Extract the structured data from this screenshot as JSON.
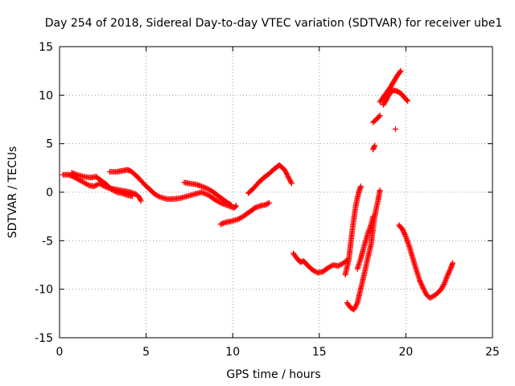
{
  "chart_data": {
    "type": "scatter",
    "title": "Day 254 of 2018, Sidereal Day-to-day VTEC variation (SDTVAR) for receiver ube1",
    "xlabel": "GPS time / hours",
    "ylabel": "SDTVAR / TECUs",
    "xlim": [
      0,
      25
    ],
    "ylim": [
      -15,
      15
    ],
    "xticks": [
      0,
      5,
      10,
      15,
      20,
      25
    ],
    "yticks": [
      -15,
      -10,
      -5,
      0,
      5,
      10,
      15
    ],
    "x_tick_labels": [
      "0",
      "5",
      "10",
      "15",
      "20",
      "25"
    ],
    "y_tick_labels": [
      "-15",
      "-10",
      "-5",
      "0",
      "5",
      "10",
      "15"
    ],
    "grid": true,
    "marker": "+",
    "color": "#ff0000",
    "segments": [
      [
        [
          0.2,
          1.8
        ],
        [
          0.5,
          1.8
        ],
        [
          0.8,
          1.6
        ],
        [
          1.1,
          1.3
        ],
        [
          1.4,
          1.0
        ],
        [
          1.7,
          0.7
        ],
        [
          2.0,
          0.6
        ],
        [
          2.3,
          0.9
        ],
        [
          2.6,
          0.6
        ],
        [
          2.9,
          0.4
        ],
        [
          3.2,
          0.3
        ],
        [
          3.5,
          0.2
        ],
        [
          3.8,
          0.1
        ],
        [
          4.1,
          0.0
        ],
        [
          4.4,
          -0.2
        ],
        [
          4.6,
          -0.5
        ],
        [
          4.7,
          -0.9
        ]
      ],
      [
        [
          0.7,
          2.0
        ],
        [
          1.0,
          1.8
        ],
        [
          1.4,
          1.6
        ],
        [
          1.8,
          1.5
        ],
        [
          2.1,
          1.6
        ],
        [
          2.4,
          1.2
        ],
        [
          2.7,
          0.8
        ],
        [
          3.0,
          0.3
        ],
        [
          3.3,
          0.0
        ],
        [
          3.6,
          -0.1
        ],
        [
          3.9,
          -0.3
        ],
        [
          4.2,
          -0.4
        ]
      ],
      [
        [
          2.9,
          2.1
        ],
        [
          3.3,
          2.1
        ],
        [
          3.6,
          2.2
        ],
        [
          3.9,
          2.3
        ],
        [
          4.1,
          2.2
        ],
        [
          4.3,
          1.9
        ],
        [
          4.6,
          1.4
        ],
        [
          4.9,
          0.8
        ],
        [
          5.2,
          0.3
        ],
        [
          5.5,
          -0.2
        ],
        [
          5.8,
          -0.5
        ],
        [
          6.2,
          -0.7
        ],
        [
          6.6,
          -0.7
        ],
        [
          7.0,
          -0.6
        ],
        [
          7.4,
          -0.4
        ],
        [
          7.8,
          -0.2
        ],
        [
          8.2,
          0.0
        ],
        [
          8.6,
          -0.3
        ],
        [
          9.0,
          -0.8
        ],
        [
          9.3,
          -1.1
        ],
        [
          9.6,
          -1.3
        ],
        [
          9.9,
          -1.5
        ],
        [
          10.1,
          -1.6
        ],
        [
          10.2,
          -1.4
        ]
      ],
      [
        [
          7.2,
          1.0
        ],
        [
          7.5,
          0.9
        ],
        [
          7.9,
          0.8
        ],
        [
          8.2,
          0.6
        ],
        [
          8.5,
          0.4
        ],
        [
          8.8,
          0.1
        ],
        [
          9.1,
          -0.3
        ],
        [
          9.4,
          -0.7
        ],
        [
          9.7,
          -1.1
        ],
        [
          9.9,
          -1.3
        ]
      ],
      [
        [
          9.3,
          -3.3
        ],
        [
          9.6,
          -3.1
        ],
        [
          9.9,
          -3.0
        ],
        [
          10.3,
          -2.8
        ],
        [
          10.6,
          -2.5
        ],
        [
          11.0,
          -2.0
        ],
        [
          11.3,
          -1.6
        ],
        [
          11.6,
          -1.4
        ],
        [
          11.9,
          -1.3
        ],
        [
          12.1,
          -1.1
        ]
      ],
      [
        [
          10.9,
          -0.1
        ],
        [
          11.2,
          0.4
        ],
        [
          11.5,
          1.0
        ],
        [
          11.8,
          1.5
        ],
        [
          12.1,
          1.9
        ],
        [
          12.4,
          2.4
        ],
        [
          12.7,
          2.8
        ],
        [
          13.0,
          2.3
        ],
        [
          13.2,
          1.6
        ],
        [
          13.4,
          0.9
        ]
      ],
      [
        [
          13.5,
          -6.3
        ],
        [
          13.7,
          -6.8
        ],
        [
          13.9,
          -7.2
        ],
        [
          14.1,
          -7.1
        ],
        [
          14.3,
          -7.5
        ],
        [
          14.6,
          -8.0
        ],
        [
          14.9,
          -8.3
        ],
        [
          15.2,
          -8.2
        ],
        [
          15.5,
          -7.8
        ],
        [
          15.8,
          -7.5
        ],
        [
          16.1,
          -7.6
        ],
        [
          16.4,
          -7.3
        ],
        [
          16.6,
          -7.0
        ]
      ],
      [
        [
          16.5,
          -8.5
        ],
        [
          16.7,
          -7.0
        ],
        [
          16.8,
          -5.5
        ],
        [
          16.9,
          -4.0
        ],
        [
          17.0,
          -2.7
        ],
        [
          17.1,
          -1.5
        ],
        [
          17.2,
          -0.6
        ],
        [
          17.3,
          0.1
        ],
        [
          17.4,
          0.6
        ]
      ],
      [
        [
          16.6,
          -11.4
        ],
        [
          16.8,
          -11.9
        ],
        [
          17.0,
          -12.1
        ],
        [
          17.2,
          -11.4
        ],
        [
          17.4,
          -9.9
        ],
        [
          17.6,
          -8.4
        ],
        [
          17.8,
          -6.8
        ],
        [
          18.0,
          -5.3
        ],
        [
          18.1,
          -3.8
        ],
        [
          18.2,
          -2.5
        ],
        [
          18.3,
          -1.6
        ],
        [
          18.4,
          -0.8
        ],
        [
          18.5,
          0.2
        ]
      ],
      [
        [
          17.2,
          -7.9
        ],
        [
          17.4,
          -6.8
        ],
        [
          17.6,
          -5.5
        ],
        [
          17.8,
          -4.3
        ],
        [
          18.0,
          -3.3
        ],
        [
          18.1,
          -2.5
        ]
      ],
      [
        [
          18.1,
          4.4
        ],
        [
          18.2,
          4.8
        ]
      ],
      [
        [
          18.1,
          7.2
        ],
        [
          18.3,
          7.5
        ],
        [
          18.5,
          7.9
        ]
      ],
      [
        [
          18.5,
          9.3
        ],
        [
          18.7,
          9.8
        ],
        [
          18.9,
          10.3
        ],
        [
          19.1,
          10.8
        ],
        [
          19.3,
          11.4
        ],
        [
          19.5,
          12.0
        ],
        [
          19.7,
          12.5
        ]
      ],
      [
        [
          18.7,
          9.0
        ],
        [
          18.9,
          9.6
        ],
        [
          19.1,
          10.3
        ],
        [
          19.3,
          10.5
        ],
        [
          19.5,
          10.4
        ],
        [
          19.7,
          10.2
        ],
        [
          19.9,
          9.8
        ],
        [
          20.1,
          9.4
        ]
      ],
      [
        [
          19.4,
          6.5
        ]
      ],
      [
        [
          19.6,
          -3.4
        ],
        [
          19.8,
          -3.8
        ],
        [
          20.0,
          -4.6
        ],
        [
          20.2,
          -5.6
        ],
        [
          20.4,
          -6.8
        ],
        [
          20.6,
          -8.0
        ],
        [
          20.8,
          -9.1
        ],
        [
          21.0,
          -9.9
        ],
        [
          21.2,
          -10.6
        ],
        [
          21.4,
          -10.9
        ],
        [
          21.7,
          -10.6
        ],
        [
          22.0,
          -10.1
        ],
        [
          22.2,
          -9.5
        ],
        [
          22.4,
          -8.6
        ],
        [
          22.6,
          -7.8
        ],
        [
          22.7,
          -7.3
        ]
      ]
    ]
  }
}
